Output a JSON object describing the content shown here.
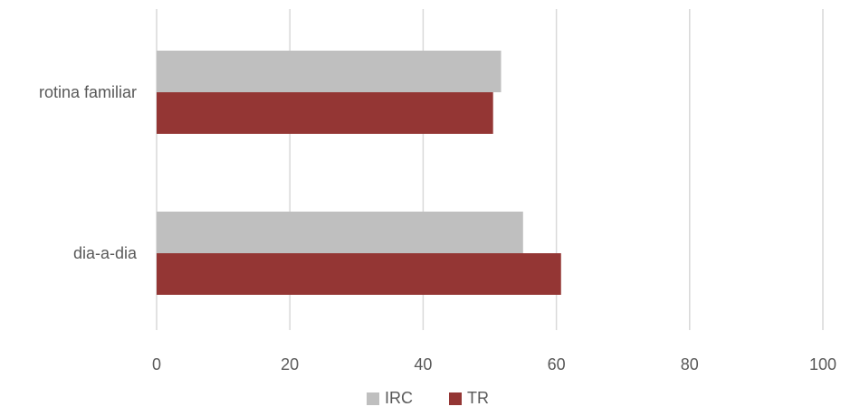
{
  "chart_data": {
    "type": "bar",
    "orientation": "horizontal",
    "categories": [
      "rotina familiar",
      "dia-a-dia"
    ],
    "series": [
      {
        "name": "IRC",
        "color": "#BFBFBF",
        "values": [
          51.7,
          55.0
        ]
      },
      {
        "name": "TR",
        "color": "#943634",
        "values": [
          50.5,
          60.7
        ]
      }
    ],
    "title": "",
    "xlabel": "",
    "ylabel": "",
    "xlim": [
      0,
      100
    ],
    "x_ticks": [
      "0",
      "20",
      "40",
      "60",
      "80",
      "100"
    ],
    "grid": true,
    "legend_position": "bottom"
  }
}
